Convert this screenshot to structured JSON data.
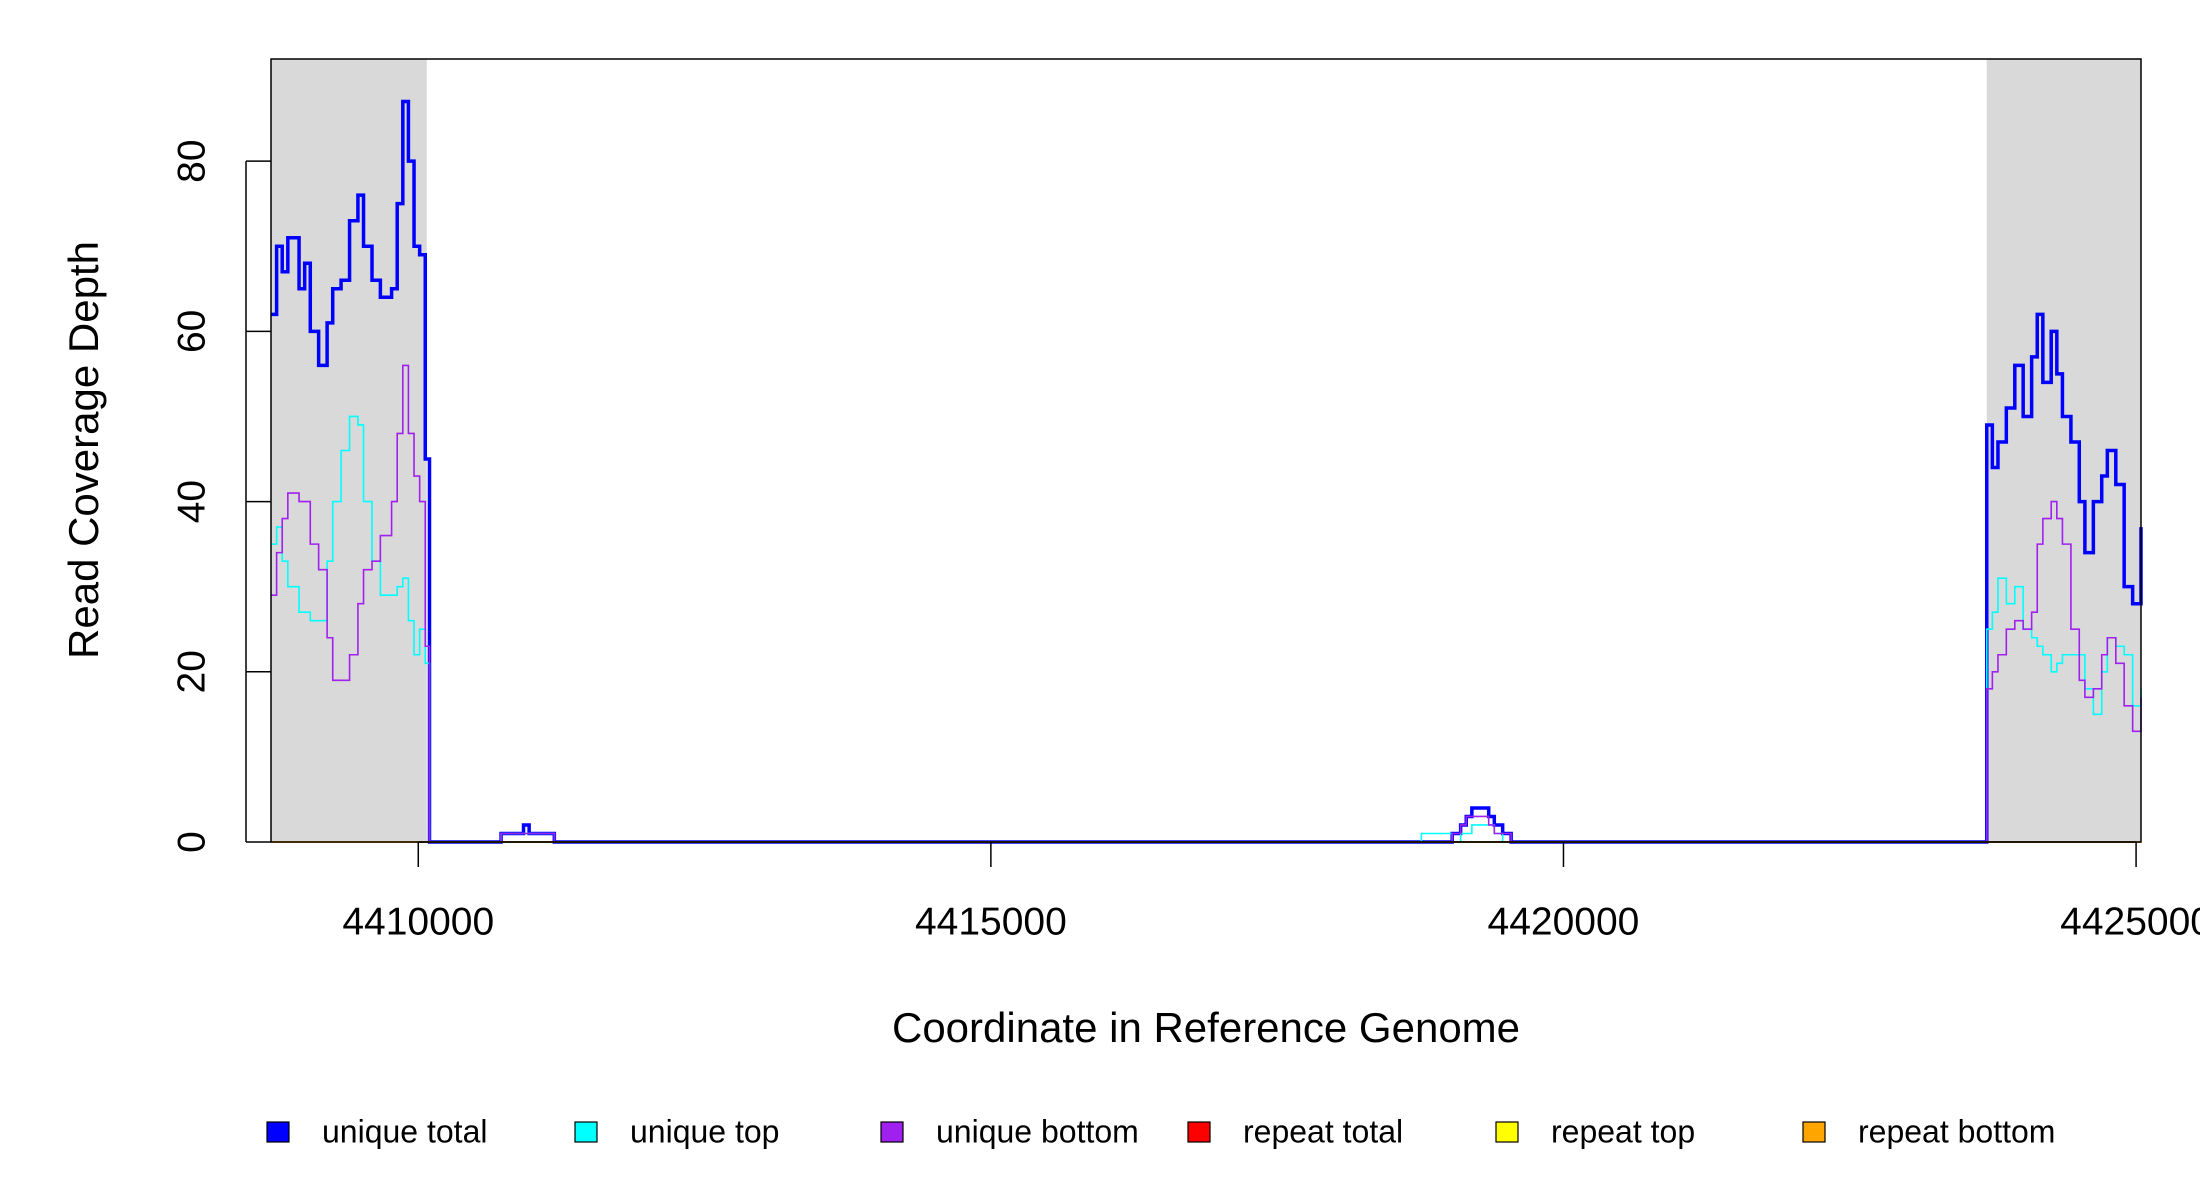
{
  "chart_data": {
    "type": "line",
    "x_label": "Coordinate in Reference Genome",
    "y_label": "Read Coverage Depth",
    "xlim": [
      4408714,
      4425043
    ],
    "ylim": [
      0,
      92
    ],
    "xticks": [
      4410000,
      4415000,
      4420000,
      4425000
    ],
    "yticks": [
      0,
      20,
      40,
      60,
      80
    ],
    "shaded_regions": [
      [
        4408714,
        4410074
      ],
      [
        4423696,
        4425043
      ]
    ],
    "shade_color": "#d9d9d9",
    "legend": "bottom",
    "x": [
      4408714,
      4408763,
      4408812,
      4408861,
      4408959,
      4409008,
      4409057,
      4409130,
      4409204,
      4409253,
      4409326,
      4409400,
      4409473,
      4409522,
      4409596,
      4409669,
      4409767,
      4409816,
      4409865,
      4409914,
      4409963,
      4410012,
      4410061,
      4410098,
      4410723,
      4410919,
      4410968,
      4411188,
      4418759,
      4419028,
      4419102,
      4419151,
      4419200,
      4419347,
      4419396,
      4419469,
      4419543,
      4423671,
      4423696,
      4423745,
      4423794,
      4423867,
      4423941,
      4424014,
      4424088,
      4424137,
      4424186,
      4424259,
      4424308,
      4424357,
      4424431,
      4424504,
      4424553,
      4424627,
      4424700,
      4424749,
      4424823,
      4424896,
      4424970,
      4425043
    ],
    "series": [
      {
        "name": "unique total",
        "color": "#0000ff",
        "values": [
          62,
          70,
          67,
          71,
          65,
          68,
          60,
          56,
          61,
          65,
          66,
          73,
          76,
          70,
          66,
          64,
          65,
          75,
          87,
          80,
          70,
          69,
          45,
          0,
          1,
          2,
          1,
          0,
          0,
          1,
          2,
          3,
          4,
          3,
          2,
          1,
          0,
          0,
          49,
          44,
          47,
          51,
          56,
          50,
          57,
          62,
          54,
          60,
          55,
          50,
          47,
          40,
          34,
          40,
          43,
          46,
          42,
          30,
          28,
          37
        ]
      },
      {
        "name": "unique top",
        "color": "#00ffff",
        "values": [
          35,
          37,
          33,
          30,
          27,
          27,
          26,
          26,
          33,
          40,
          46,
          50,
          49,
          40,
          33,
          29,
          29,
          30,
          31,
          26,
          22,
          25,
          21,
          0,
          1,
          1,
          1,
          0,
          1,
          0,
          1,
          1,
          2,
          2,
          1,
          0,
          0,
          0,
          25,
          27,
          31,
          28,
          30,
          25,
          24,
          23,
          22,
          20,
          21,
          22,
          22,
          22,
          18,
          15,
          20,
          24,
          23,
          22,
          16,
          18
        ]
      },
      {
        "name": "unique bottom",
        "color": "#a020f0",
        "values": [
          29,
          34,
          38,
          41,
          40,
          40,
          35,
          32,
          24,
          19,
          19,
          22,
          28,
          32,
          33,
          36,
          40,
          48,
          56,
          48,
          43,
          40,
          23,
          0,
          1,
          1,
          1,
          0,
          0,
          1,
          2,
          3,
          3,
          2,
          1,
          1,
          0,
          0,
          18,
          20,
          22,
          25,
          26,
          25,
          27,
          35,
          38,
          40,
          38,
          35,
          25,
          19,
          17,
          18,
          22,
          24,
          21,
          16,
          13,
          17
        ]
      },
      {
        "name": "repeat total",
        "color": "#ff0000",
        "values": [
          0,
          0,
          0,
          0,
          0,
          0,
          0,
          0,
          0,
          0,
          0,
          0,
          0,
          0,
          0,
          0,
          0,
          0,
          0,
          0,
          0,
          0,
          0,
          0,
          0,
          0,
          0,
          0,
          0,
          0,
          0,
          0,
          0,
          0,
          0,
          0,
          0,
          0,
          0,
          0,
          0,
          0,
          0,
          0,
          0,
          0,
          0,
          0,
          0,
          0,
          0,
          0,
          0,
          0,
          0,
          0,
          0,
          0,
          0,
          0
        ]
      },
      {
        "name": "repeat top",
        "color": "#ffff00",
        "values": [
          0,
          0,
          0,
          0,
          0,
          0,
          0,
          0,
          0,
          0,
          0,
          0,
          0,
          0,
          0,
          0,
          0,
          0,
          0,
          0,
          0,
          0,
          0,
          0,
          0,
          0,
          0,
          0,
          0,
          0,
          0,
          0,
          0,
          0,
          0,
          0,
          0,
          0,
          0,
          0,
          0,
          0,
          0,
          0,
          0,
          0,
          0,
          0,
          0,
          0,
          0,
          0,
          0,
          0,
          0,
          0,
          0,
          0,
          0,
          0
        ]
      },
      {
        "name": "repeat bottom",
        "color": "#ffa500",
        "values": [
          0,
          0,
          0,
          0,
          0,
          0,
          0,
          0,
          0,
          0,
          0,
          0,
          0,
          0,
          0,
          0,
          0,
          0,
          0,
          0,
          0,
          0,
          0,
          0,
          0,
          0,
          0,
          0,
          0,
          0,
          0,
          0,
          0,
          0,
          0,
          0,
          0,
          0,
          0,
          0,
          0,
          0,
          0,
          0,
          0,
          0,
          0,
          0,
          0,
          0,
          0,
          0,
          0,
          0,
          0,
          0,
          0,
          0,
          0,
          0
        ]
      }
    ]
  }
}
